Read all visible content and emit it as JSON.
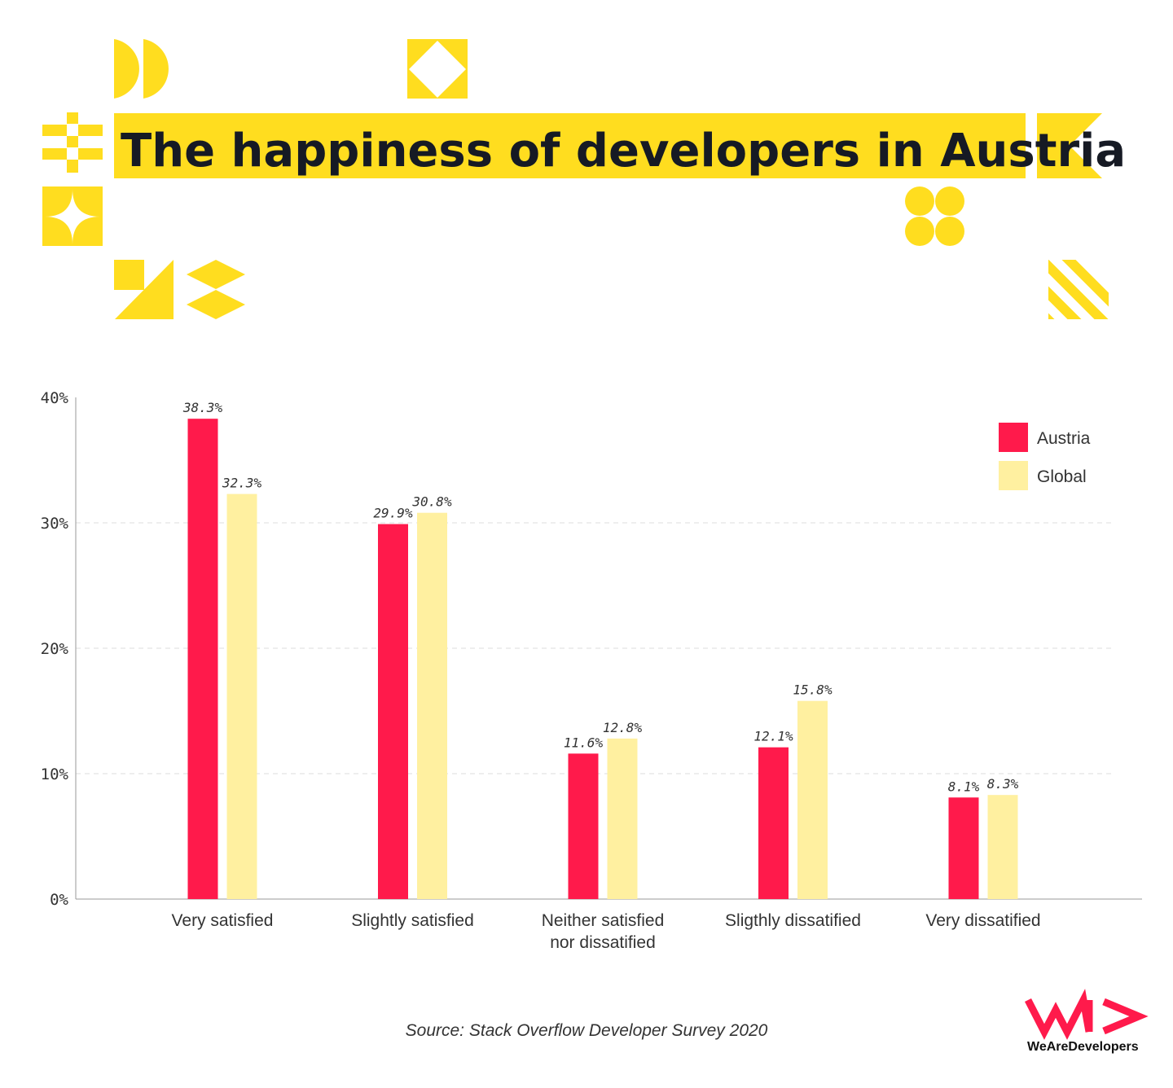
{
  "colors": {
    "accent": "#FFDD1F",
    "austria": "#FF1A4B",
    "global": "#FFF0A0"
  },
  "chart_data": {
    "type": "bar",
    "title": "The happiness of developers in Austria",
    "categories": [
      [
        "Very satisfied"
      ],
      [
        "Slightly satisfied"
      ],
      [
        "Neither satisfied",
        "nor dissatified"
      ],
      [
        "Sligthly dissatified"
      ],
      [
        "Very dissatified"
      ]
    ],
    "series": [
      {
        "name": "Austria",
        "values": [
          38.3,
          29.9,
          11.6,
          12.1,
          8.1
        ]
      },
      {
        "name": "Global",
        "values": [
          32.3,
          30.8,
          12.8,
          15.8,
          8.3
        ]
      }
    ],
    "ylim": [
      0,
      40
    ],
    "yticks": [
      0,
      10,
      20,
      30,
      40
    ],
    "ytick_format": "%",
    "grid": true,
    "legend_position": "top-right",
    "source": "Source: Stack Overflow Developer Survey 2020"
  },
  "logo": {
    "text": "WeAreDevelopers"
  }
}
